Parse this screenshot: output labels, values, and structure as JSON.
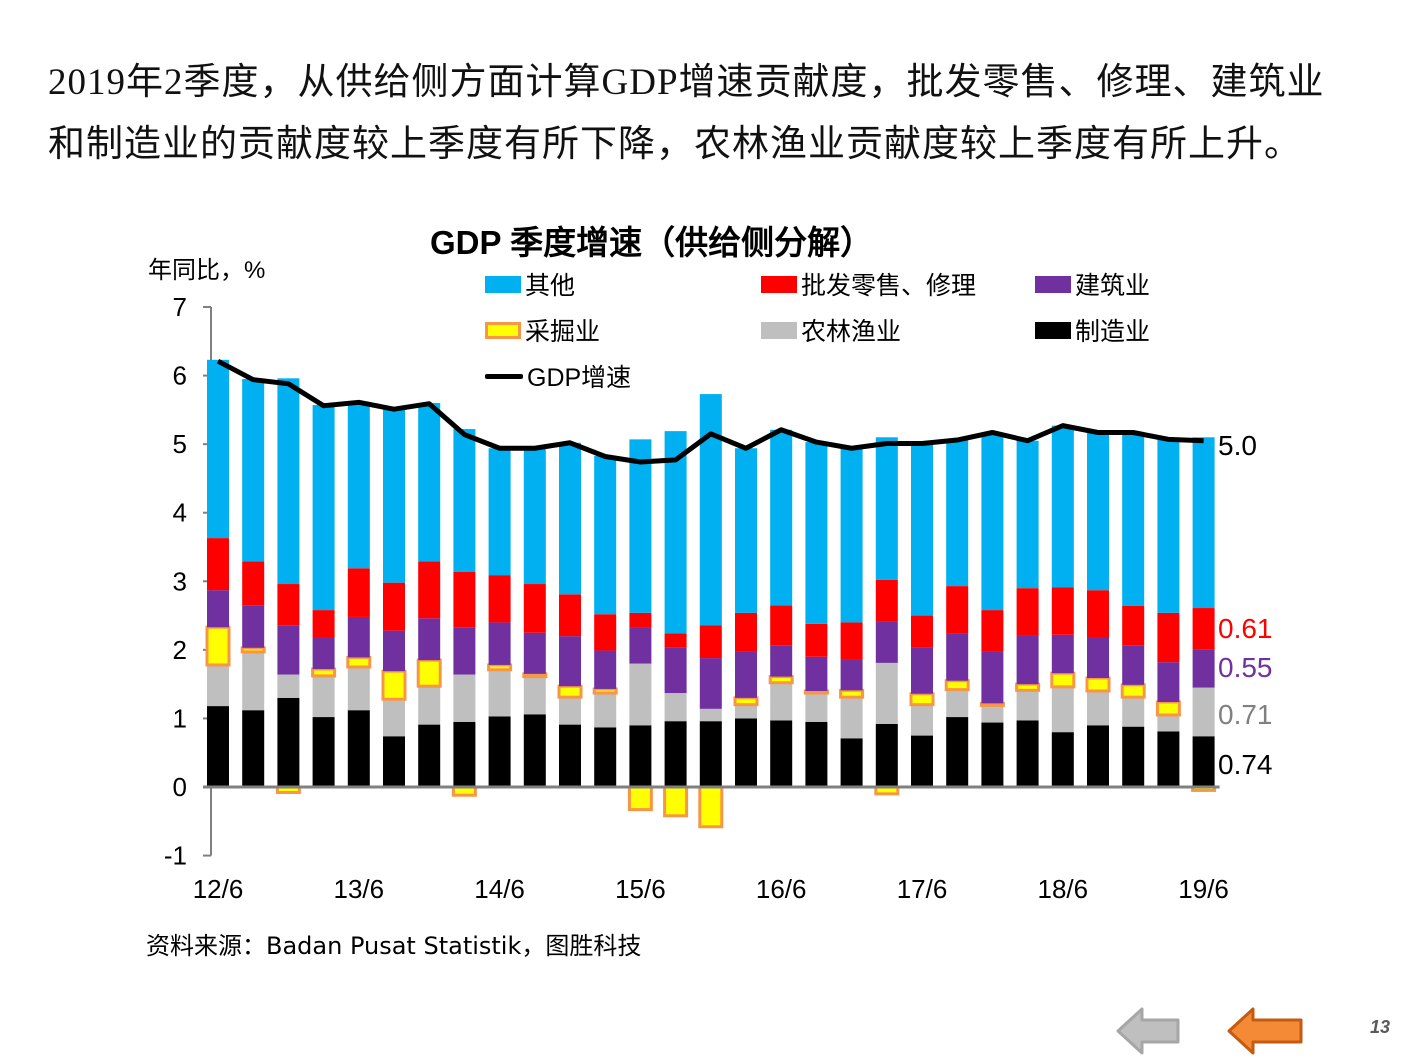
{
  "intro_text": "2019年2季度，从供给侧方面计算GDP增速贡献度，批发零售、修理、建筑业和制造业的贡献度较上季度有所下降，农林渔业贡献度较上季度有所上升。",
  "source_text": "资料来源：Badan Pusat Statistik，图胜科技",
  "page_number": "13",
  "nav": {
    "prev_icon": "arrow-left-icon",
    "back_icon": "arrow-left-icon"
  },
  "colors": {
    "other": "#00B0F0",
    "wholesale": "#FF0000",
    "construction": "#7030A0",
    "mining": "#FFFF00",
    "mining_border": "#F79646",
    "agriculture": "#BFBFBF",
    "manufacturing": "#000000",
    "gdp_line": "#000000",
    "axis": "#808080",
    "nav_grey": "#BFBFBF",
    "nav_orange": "#F58A36"
  },
  "chart_data": {
    "type": "bar",
    "stacked": true,
    "title": "GDP 季度增速（供给侧分解）",
    "ylabel": "年同比，%",
    "xlabel": "",
    "ylim": [
      -1,
      7
    ],
    "yticks": [
      "-1",
      "0",
      "1",
      "2",
      "3",
      "4",
      "5",
      "6",
      "7"
    ],
    "grid": false,
    "legend_position": "top",
    "x_tick_labels": [
      "12/6",
      "13/6",
      "14/6",
      "15/6",
      "16/6",
      "17/6",
      "18/6",
      "19/6"
    ],
    "x_tick_every": 4,
    "categories": [
      "12/6",
      "12/9",
      "12/12",
      "13/3",
      "13/6",
      "13/9",
      "13/12",
      "14/3",
      "14/6",
      "14/9",
      "14/12",
      "15/3",
      "15/6",
      "15/9",
      "15/12",
      "16/3",
      "16/6",
      "16/9",
      "16/12",
      "17/3",
      "17/6",
      "17/9",
      "17/12",
      "18/3",
      "18/6",
      "18/9",
      "18/12",
      "19/3",
      "19/6"
    ],
    "series": [
      {
        "key": "manufacturing",
        "name": "制造业",
        "values": [
          1.18,
          1.12,
          1.3,
          1.02,
          1.12,
          0.74,
          0.91,
          0.95,
          1.03,
          1.06,
          0.91,
          0.87,
          0.9,
          0.96,
          0.96,
          1.0,
          0.97,
          0.95,
          0.71,
          0.92,
          0.75,
          1.02,
          0.94,
          0.97,
          0.8,
          0.9,
          0.88,
          0.81,
          0.74
        ]
      },
      {
        "key": "agriculture",
        "name": "农林渔业",
        "values": [
          0.6,
          0.85,
          0.34,
          0.6,
          0.63,
          0.54,
          0.56,
          0.69,
          0.68,
          0.55,
          0.4,
          0.5,
          0.9,
          0.41,
          0.18,
          0.2,
          0.55,
          0.42,
          0.6,
          0.89,
          0.45,
          0.4,
          0.25,
          0.44,
          0.66,
          0.5,
          0.43,
          0.24,
          0.71
        ]
      },
      {
        "key": "mining",
        "name": "采掘业",
        "values": [
          0.55,
          0.06,
          -0.08,
          0.1,
          0.14,
          0.41,
          0.38,
          -0.12,
          0.07,
          0.04,
          0.16,
          0.06,
          -0.33,
          -0.42,
          -0.58,
          0.1,
          0.09,
          0.03,
          0.1,
          -0.1,
          0.16,
          0.13,
          0.03,
          0.09,
          0.2,
          0.19,
          0.18,
          0.19,
          -0.05
        ]
      },
      {
        "key": "construction",
        "name": "建筑业",
        "values": [
          0.54,
          0.62,
          0.72,
          0.46,
          0.59,
          0.59,
          0.61,
          0.69,
          0.62,
          0.6,
          0.73,
          0.56,
          0.52,
          0.67,
          0.74,
          0.67,
          0.45,
          0.5,
          0.45,
          0.61,
          0.68,
          0.69,
          0.75,
          0.71,
          0.56,
          0.59,
          0.57,
          0.58,
          0.55
        ]
      },
      {
        "key": "wholesale",
        "name": "批发零售、修理",
        "values": [
          0.76,
          0.64,
          0.6,
          0.4,
          0.71,
          0.7,
          0.83,
          0.81,
          0.69,
          0.71,
          0.61,
          0.53,
          0.22,
          0.2,
          0.48,
          0.57,
          0.59,
          0.48,
          0.54,
          0.6,
          0.46,
          0.69,
          0.61,
          0.69,
          0.69,
          0.69,
          0.58,
          0.72,
          0.61
        ]
      },
      {
        "key": "other",
        "name": "其他",
        "values": [
          2.6,
          2.66,
          3.0,
          2.99,
          2.41,
          2.52,
          2.31,
          2.08,
          1.85,
          1.98,
          2.21,
          2.31,
          2.53,
          2.95,
          3.37,
          2.4,
          2.56,
          2.65,
          2.54,
          2.08,
          2.51,
          2.13,
          2.59,
          2.15,
          2.36,
          2.3,
          2.53,
          2.53,
          2.49
        ]
      }
    ],
    "line": {
      "key": "gdp",
      "name": "GDP增速",
      "values": [
        6.21,
        5.94,
        5.88,
        5.56,
        5.61,
        5.51,
        5.59,
        5.14,
        4.94,
        4.94,
        5.02,
        4.82,
        4.74,
        4.77,
        5.15,
        4.94,
        5.21,
        5.03,
        4.94,
        5.01,
        5.01,
        5.06,
        5.17,
        5.05,
        5.27,
        5.17,
        5.17,
        5.07,
        5.05
      ]
    },
    "legend": [
      {
        "key": "other",
        "label": "其他"
      },
      {
        "key": "wholesale",
        "label": "批发零售、修理"
      },
      {
        "key": "construction",
        "label": "建筑业"
      },
      {
        "key": "mining",
        "label": "采掘业"
      },
      {
        "key": "agriculture",
        "label": "农林渔业"
      },
      {
        "key": "manufacturing",
        "label": "制造业"
      },
      {
        "key": "gdp",
        "label": "GDP增速"
      }
    ],
    "annotations": [
      {
        "text": "5.0",
        "series": "gdp",
        "color": "#000000"
      },
      {
        "text": "0.61",
        "series": "wholesale",
        "color": "#FF0000"
      },
      {
        "text": "0.55",
        "series": "construction",
        "color": "#7030A0"
      },
      {
        "text": "0.71",
        "series": "agriculture",
        "color": "#808080"
      },
      {
        "text": "0.74",
        "series": "manufacturing",
        "color": "#000000"
      }
    ]
  }
}
